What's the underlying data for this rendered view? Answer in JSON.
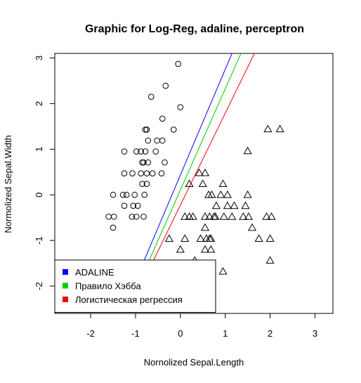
{
  "chart_data": {
    "type": "scatter",
    "title": "Graphic for Log-Reg, adaline, perceptron",
    "xlabel": "Nornolized Sepal.Length",
    "ylabel": "Normolized Sepal.Width",
    "xlim": [
      -2.8,
      3.4
    ],
    "ylim": [
      -2.6,
      3.1
    ],
    "xticks": [
      -2,
      -1,
      0,
      1,
      2,
      3
    ],
    "yticks": [
      -2,
      -1,
      0,
      1,
      2,
      3
    ],
    "grid": false,
    "legend_position": "bottom-left",
    "series": [
      {
        "name": "",
        "marker": "circle",
        "points": [
          [
            -0.05,
            2.87
          ],
          [
            -0.33,
            2.39
          ],
          [
            -0.65,
            2.15
          ],
          [
            0.0,
            1.92
          ],
          [
            -0.4,
            1.67
          ],
          [
            -0.15,
            1.43
          ],
          [
            -0.75,
            1.43
          ],
          [
            -0.78,
            1.43
          ],
          [
            -0.52,
            1.19
          ],
          [
            -0.72,
            1.19
          ],
          [
            -0.4,
            1.19
          ],
          [
            -1.25,
            0.95
          ],
          [
            -0.98,
            0.95
          ],
          [
            -0.88,
            0.95
          ],
          [
            -0.78,
            0.95
          ],
          [
            -0.55,
            0.95
          ],
          [
            -0.85,
            0.71
          ],
          [
            -0.72,
            0.71
          ],
          [
            -0.35,
            0.71
          ],
          [
            -0.82,
            0.71
          ],
          [
            -1.25,
            0.47
          ],
          [
            -1.07,
            0.47
          ],
          [
            -0.88,
            0.47
          ],
          [
            -0.75,
            0.47
          ],
          [
            -0.62,
            0.47
          ],
          [
            -0.42,
            0.47
          ],
          [
            -0.85,
            0.24
          ],
          [
            -0.75,
            0.24
          ],
          [
            -1.5,
            0.0
          ],
          [
            -1.28,
            0.0
          ],
          [
            -1.2,
            0.0
          ],
          [
            -1.02,
            0.0
          ],
          [
            -0.8,
            0.0
          ],
          [
            -1.25,
            -0.24
          ],
          [
            -1.05,
            -0.24
          ],
          [
            -0.95,
            -0.24
          ],
          [
            -1.6,
            -0.48
          ],
          [
            -1.48,
            -0.48
          ],
          [
            -1.08,
            -0.48
          ],
          [
            -0.98,
            -0.48
          ],
          [
            -0.82,
            -0.48
          ],
          [
            -1.5,
            -0.72
          ]
        ]
      },
      {
        "name": "",
        "marker": "triangle",
        "points": [
          [
            1.95,
            1.44
          ],
          [
            2.22,
            1.44
          ],
          [
            1.5,
            0.96
          ],
          [
            0.42,
            0.48
          ],
          [
            0.55,
            0.48
          ],
          [
            0.2,
            0.24
          ],
          [
            0.5,
            0.24
          ],
          [
            0.95,
            0.24
          ],
          [
            0.63,
            0.0
          ],
          [
            0.7,
            0.0
          ],
          [
            0.9,
            0.0
          ],
          [
            1.05,
            0.0
          ],
          [
            1.5,
            0.0
          ],
          [
            0.8,
            -0.24
          ],
          [
            1.05,
            -0.24
          ],
          [
            1.2,
            -0.24
          ],
          [
            1.45,
            -0.24
          ],
          [
            0.1,
            -0.48
          ],
          [
            0.2,
            -0.48
          ],
          [
            0.28,
            -0.48
          ],
          [
            0.55,
            -0.48
          ],
          [
            0.65,
            -0.48
          ],
          [
            0.75,
            -0.48
          ],
          [
            0.78,
            -0.48
          ],
          [
            0.97,
            -0.48
          ],
          [
            1.15,
            -0.48
          ],
          [
            1.4,
            -0.48
          ],
          [
            1.52,
            -0.48
          ],
          [
            1.92,
            -0.48
          ],
          [
            2.03,
            -0.48
          ],
          [
            0.55,
            -0.72
          ],
          [
            1.6,
            -0.72
          ],
          [
            -0.25,
            -0.96
          ],
          [
            0.1,
            -0.96
          ],
          [
            0.45,
            -0.96
          ],
          [
            0.58,
            -0.96
          ],
          [
            0.65,
            -0.96
          ],
          [
            0.68,
            -0.96
          ],
          [
            1.75,
            -0.96
          ],
          [
            2.0,
            -0.96
          ],
          [
            0.0,
            -1.2
          ],
          [
            0.55,
            -1.2
          ],
          [
            0.68,
            -1.2
          ],
          [
            0.32,
            -1.44
          ],
          [
            2.0,
            -1.44
          ],
          [
            0.95,
            -1.68
          ]
        ]
      }
    ],
    "lines": [
      {
        "name": "ADALINE",
        "color": "#0000ff",
        "p1": [
          -1.05,
          -2.0
        ],
        "p2": [
          1.15,
          3.1
        ]
      },
      {
        "name": "Правило Хэбба",
        "color": "#00cc00",
        "p1": [
          -0.95,
          -2.0
        ],
        "p2": [
          1.35,
          3.1
        ]
      },
      {
        "name": "Логистическая регрессия",
        "color": "#ff0000",
        "p1": [
          -0.88,
          -2.0
        ],
        "p2": [
          1.65,
          3.1
        ]
      }
    ]
  }
}
